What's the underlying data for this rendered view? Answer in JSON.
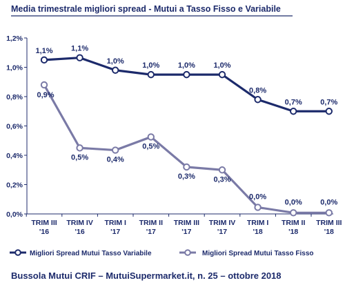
{
  "header": {
    "title": "Media trimestrale migliori spread - Mutui a Tasso Fisso e Variabile"
  },
  "footer": {
    "source": "Bussola Mutui CRIF – MutuiSupermarket.it, n. 25 – ottobre 2018"
  },
  "chart_data": {
    "type": "line",
    "title": "Media trimestrale migliori spread - Mutui a Tasso Fisso e Variabile",
    "categories": [
      [
        "TRIM III",
        "'16"
      ],
      [
        "TRIM IV",
        "'16"
      ],
      [
        "TRIM I",
        "'17"
      ],
      [
        "TRIM II",
        "'17"
      ],
      [
        "TRIM III",
        "'17"
      ],
      [
        "TRIM IV",
        "'17"
      ],
      [
        "TRIM I",
        "'18"
      ],
      [
        "TRIM II",
        "'18"
      ],
      [
        "TRIM III",
        "'18"
      ]
    ],
    "ylim": [
      0,
      1.2
    ],
    "yticks": [
      0,
      0.2,
      0.4,
      0.6,
      0.8,
      1.0,
      1.2
    ],
    "ytick_labels": [
      "0,0%",
      "0,2%",
      "0,4%",
      "0,6%",
      "0,8%",
      "1,0%",
      "1,2%"
    ],
    "grid": false,
    "legend_position": "bottom",
    "series": [
      {
        "name": "Migliori Spread Mutui Tasso Variabile",
        "color": "#1c2a6b",
        "values": [
          1.05,
          1.065,
          0.98,
          0.95,
          0.95,
          0.95,
          0.78,
          0.7,
          0.7
        ],
        "labels": [
          "1,1%",
          "1,1%",
          "1,0%",
          "1,0%",
          "1,0%",
          "1,0%",
          "0,8%",
          "0,7%",
          "0,7%"
        ]
      },
      {
        "name": "Migliori Spread Mutui Tasso Fisso",
        "color": "#7a7aa6",
        "values": [
          0.88,
          0.45,
          0.435,
          0.525,
          0.32,
          0.3,
          0.045,
          0.008,
          0.008
        ],
        "labels": [
          "0,9%",
          "0,5%",
          "0,4%",
          "0,5%",
          "0,3%",
          "0,3%",
          "0,0%",
          "0,0%",
          "0,0%"
        ]
      }
    ]
  }
}
